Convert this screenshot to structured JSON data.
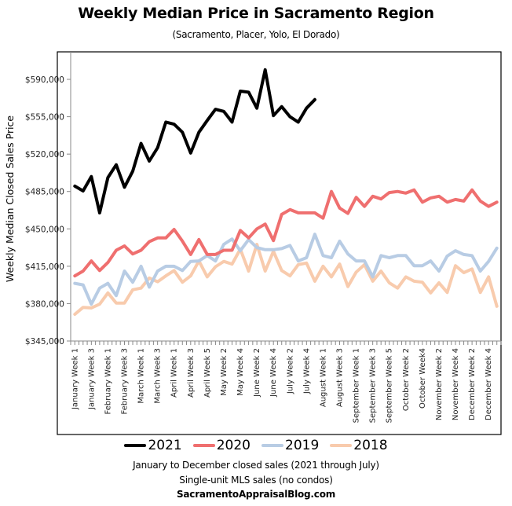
{
  "chart_data": {
    "type": "line",
    "title": "Weekly Median Price in Sacramento Region",
    "subtitle": "(Sacramento, Placer,  Yolo, El Dorado)",
    "xlabel": "",
    "ylabel": "Weekly Median  Closed Sales Price",
    "ylim": [
      345000,
      610000
    ],
    "yticks": [
      345000,
      380000,
      415000,
      450000,
      485000,
      520000,
      555000,
      590000
    ],
    "ytick_labels": [
      "$345,000",
      "$380,000",
      "$415,000",
      "$450,000",
      "$485,000",
      "$520,000",
      "$555,000",
      "$590,000"
    ],
    "x_count": 52,
    "x_tick_labels": [
      "January Week 1",
      "January Week 3",
      "February Week 1",
      "February Week 3",
      "March Week 1",
      "March Week 3",
      "April Week 1",
      "April Week 3",
      "April Week 5",
      "May Week 2",
      "May Week 4",
      "June Week 2",
      "June Week 4",
      "July Week 2",
      "July Week 4",
      "August Week 1",
      "August Week 3",
      "September Week 1",
      "September Week 3",
      "September Week 5",
      "October Week 2",
      "October Week4",
      "November Week 2",
      "November Week 4",
      "December Week 2",
      "December Week 4"
    ],
    "grid": false,
    "legend_position": "bottom",
    "series": [
      {
        "name": "2021",
        "color": "#000000",
        "values": [
          490000,
          485500,
          499000,
          465000,
          498000,
          510000,
          489000,
          504000,
          530000,
          513500,
          526000,
          550000,
          548000,
          540500,
          521000,
          540500,
          551500,
          562000,
          560000,
          550000,
          579000,
          578000,
          563000,
          599000,
          556000,
          564500,
          555000,
          550000,
          563000,
          571000
        ]
      },
      {
        "name": "2020",
        "color": "#EF6F6F",
        "values": [
          406000,
          410500,
          420000,
          411000,
          418500,
          430000,
          434000,
          426500,
          430000,
          438000,
          441500,
          441500,
          449500,
          438500,
          426000,
          440000,
          426000,
          426000,
          430000,
          430000,
          448500,
          441500,
          450000,
          454500,
          439000,
          463500,
          468000,
          465000,
          465000,
          465000,
          460000,
          485000,
          469500,
          464500,
          479500,
          471000,
          480500,
          478000,
          484000,
          485000,
          483500,
          486500,
          475000,
          479000,
          480500,
          475000,
          477500,
          476000,
          486500,
          476000,
          471000,
          475000
        ]
      },
      {
        "name": "2019",
        "color": "#B8CCE4",
        "values": [
          399000,
          397500,
          379500,
          394500,
          399000,
          387500,
          410500,
          400000,
          415000,
          395500,
          410500,
          415000,
          415000,
          411000,
          419500,
          420000,
          425000,
          420000,
          435500,
          440500,
          429500,
          440000,
          432500,
          430500,
          430500,
          431500,
          434500,
          420000,
          423000,
          445000,
          425000,
          423000,
          438500,
          426500,
          420000,
          420000,
          405000,
          425000,
          423000,
          425000,
          425000,
          415500,
          415500,
          420000,
          410500,
          424500,
          429500,
          426000,
          425000,
          410500,
          419500,
          432000
        ]
      },
      {
        "name": "2018",
        "color": "#F8CBAD",
        "values": [
          370000,
          376500,
          376000,
          379500,
          390000,
          380500,
          380500,
          393000,
          394500,
          404000,
          400500,
          406000,
          411000,
          400000,
          406000,
          420000,
          405000,
          414500,
          419500,
          417000,
          431000,
          410500,
          435500,
          410500,
          429000,
          411000,
          406000,
          416500,
          418000,
          401000,
          415000,
          405000,
          417000,
          396000,
          409500,
          416500,
          401000,
          410500,
          399500,
          394500,
          405000,
          401000,
          400000,
          390000,
          399500,
          390500,
          415500,
          409000,
          412500,
          390500,
          405000,
          377500
        ]
      }
    ]
  },
  "notes": {
    "line1": "January to December closed sales (2021 through July)",
    "line2": "Single-unit MLS sales (no condos)",
    "site": "SacramentoAppraisalBlog.com"
  }
}
